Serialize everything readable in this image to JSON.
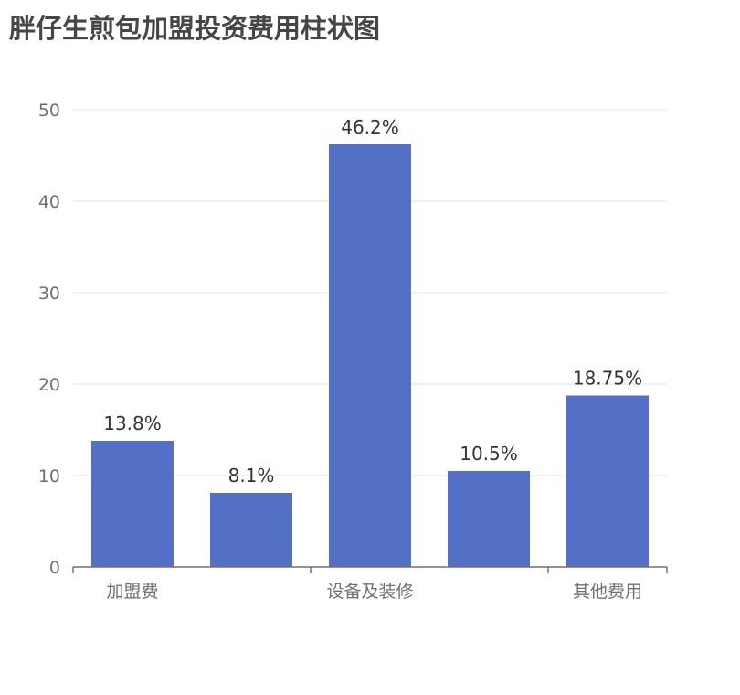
{
  "chart_data": {
    "type": "bar",
    "title": "胖仔生煎包加盟投资费用柱状图",
    "categories": [
      "加盟费",
      "",
      "设备及装修",
      "",
      "其他费用"
    ],
    "values": [
      13.8,
      8.1,
      46.2,
      10.5,
      18.75
    ],
    "data_labels": [
      "13.8%",
      "8.1%",
      "46.2%",
      "10.5%",
      "18.75%"
    ],
    "ylim": [
      0,
      50
    ],
    "yticks": [
      0,
      10,
      20,
      30,
      40,
      50
    ],
    "grid": true,
    "colors": {
      "bar": "#5470c6",
      "grid": "#e0e6f1",
      "axis": "#6e7079"
    }
  }
}
